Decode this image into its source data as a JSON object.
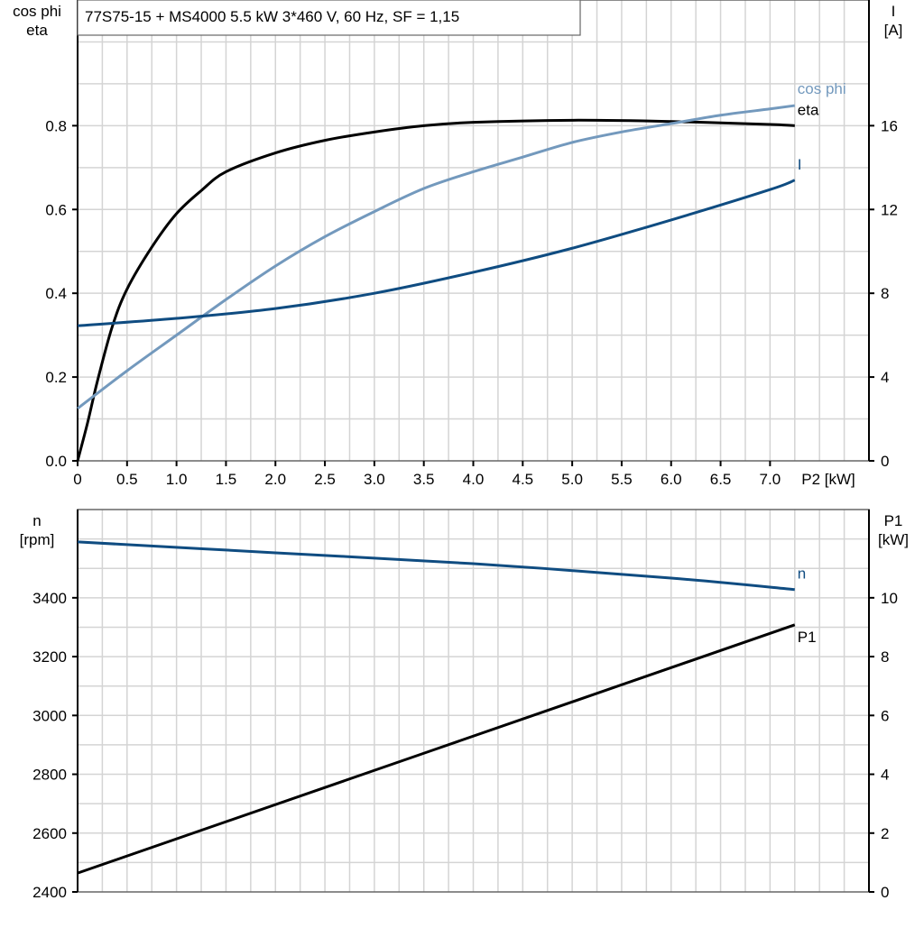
{
  "chart_data": [
    {
      "type": "line",
      "title": "77S75-15 + MS4000   5.5 kW   3*460 V, 60 Hz, SF = 1,15",
      "xlabel": "P2 [kW]",
      "ylabel_left": [
        "cos phi",
        "eta"
      ],
      "ylabel_right": [
        "I",
        "[A]"
      ],
      "xlim": [
        0,
        8
      ],
      "ylim_left": [
        0,
        1.1
      ],
      "ylim_right": [
        0,
        22
      ],
      "x_ticks": [
        "0",
        "0.5",
        "1.0",
        "1.5",
        "2.0",
        "2.5",
        "3.0",
        "3.5",
        "4.0",
        "4.5",
        "5.0",
        "5.5",
        "6.0",
        "6.5",
        "7.0"
      ],
      "y_ticks_left": [
        "0.0",
        "0.2",
        "0.4",
        "0.6",
        "0.8"
      ],
      "y_ticks_right": [
        "0",
        "4",
        "8",
        "12",
        "16"
      ],
      "grid": true,
      "series": [
        {
          "name": "eta",
          "axis": "left",
          "color": "#000000",
          "x": [
            0,
            0.1,
            0.2,
            0.35,
            0.5,
            0.75,
            1.0,
            1.25,
            1.5,
            2.0,
            2.5,
            3.0,
            3.5,
            4.0,
            5.0,
            6.0,
            7.0,
            7.25
          ],
          "y": [
            0,
            0.09,
            0.19,
            0.32,
            0.41,
            0.51,
            0.59,
            0.645,
            0.69,
            0.735,
            0.765,
            0.785,
            0.8,
            0.808,
            0.813,
            0.81,
            0.803,
            0.8
          ]
        },
        {
          "name": "cos phi",
          "axis": "left",
          "color": "#7399bd",
          "x": [
            0,
            0.5,
            1.0,
            1.5,
            2.0,
            2.5,
            3.0,
            3.5,
            4.0,
            4.5,
            5.0,
            5.5,
            6.0,
            6.5,
            7.0,
            7.25
          ],
          "y": [
            0.125,
            0.215,
            0.3,
            0.385,
            0.465,
            0.535,
            0.595,
            0.65,
            0.69,
            0.725,
            0.76,
            0.785,
            0.805,
            0.825,
            0.84,
            0.848
          ]
        },
        {
          "name": "I",
          "axis": "right",
          "color": "#0f4c81",
          "x": [
            0,
            1,
            2,
            3,
            4,
            5,
            6,
            7,
            7.25
          ],
          "y": [
            6.45,
            6.8,
            7.27,
            8.0,
            9.0,
            10.15,
            11.5,
            12.95,
            13.4
          ]
        }
      ]
    },
    {
      "type": "line",
      "xlim": [
        0,
        8
      ],
      "ylabel_left": [
        "n",
        "[rpm]"
      ],
      "ylabel_right": [
        "P1",
        "[kW]"
      ],
      "ylim_left": [
        2400,
        3700
      ],
      "ylim_right": [
        0,
        13
      ],
      "y_ticks_left": [
        "2400",
        "2600",
        "2800",
        "3000",
        "3200",
        "3400"
      ],
      "y_ticks_right": [
        "0",
        "2",
        "4",
        "6",
        "8",
        "10"
      ],
      "grid": true,
      "series": [
        {
          "name": "n",
          "axis": "left",
          "color": "#0f4c81",
          "x": [
            0,
            2,
            4,
            6,
            7.25
          ],
          "y": [
            3590,
            3553,
            3516,
            3467,
            3428
          ]
        },
        {
          "name": "P1",
          "axis": "right",
          "color": "#000000",
          "x": [
            0,
            7.25
          ],
          "y": [
            0.64,
            9.08
          ]
        }
      ]
    }
  ]
}
